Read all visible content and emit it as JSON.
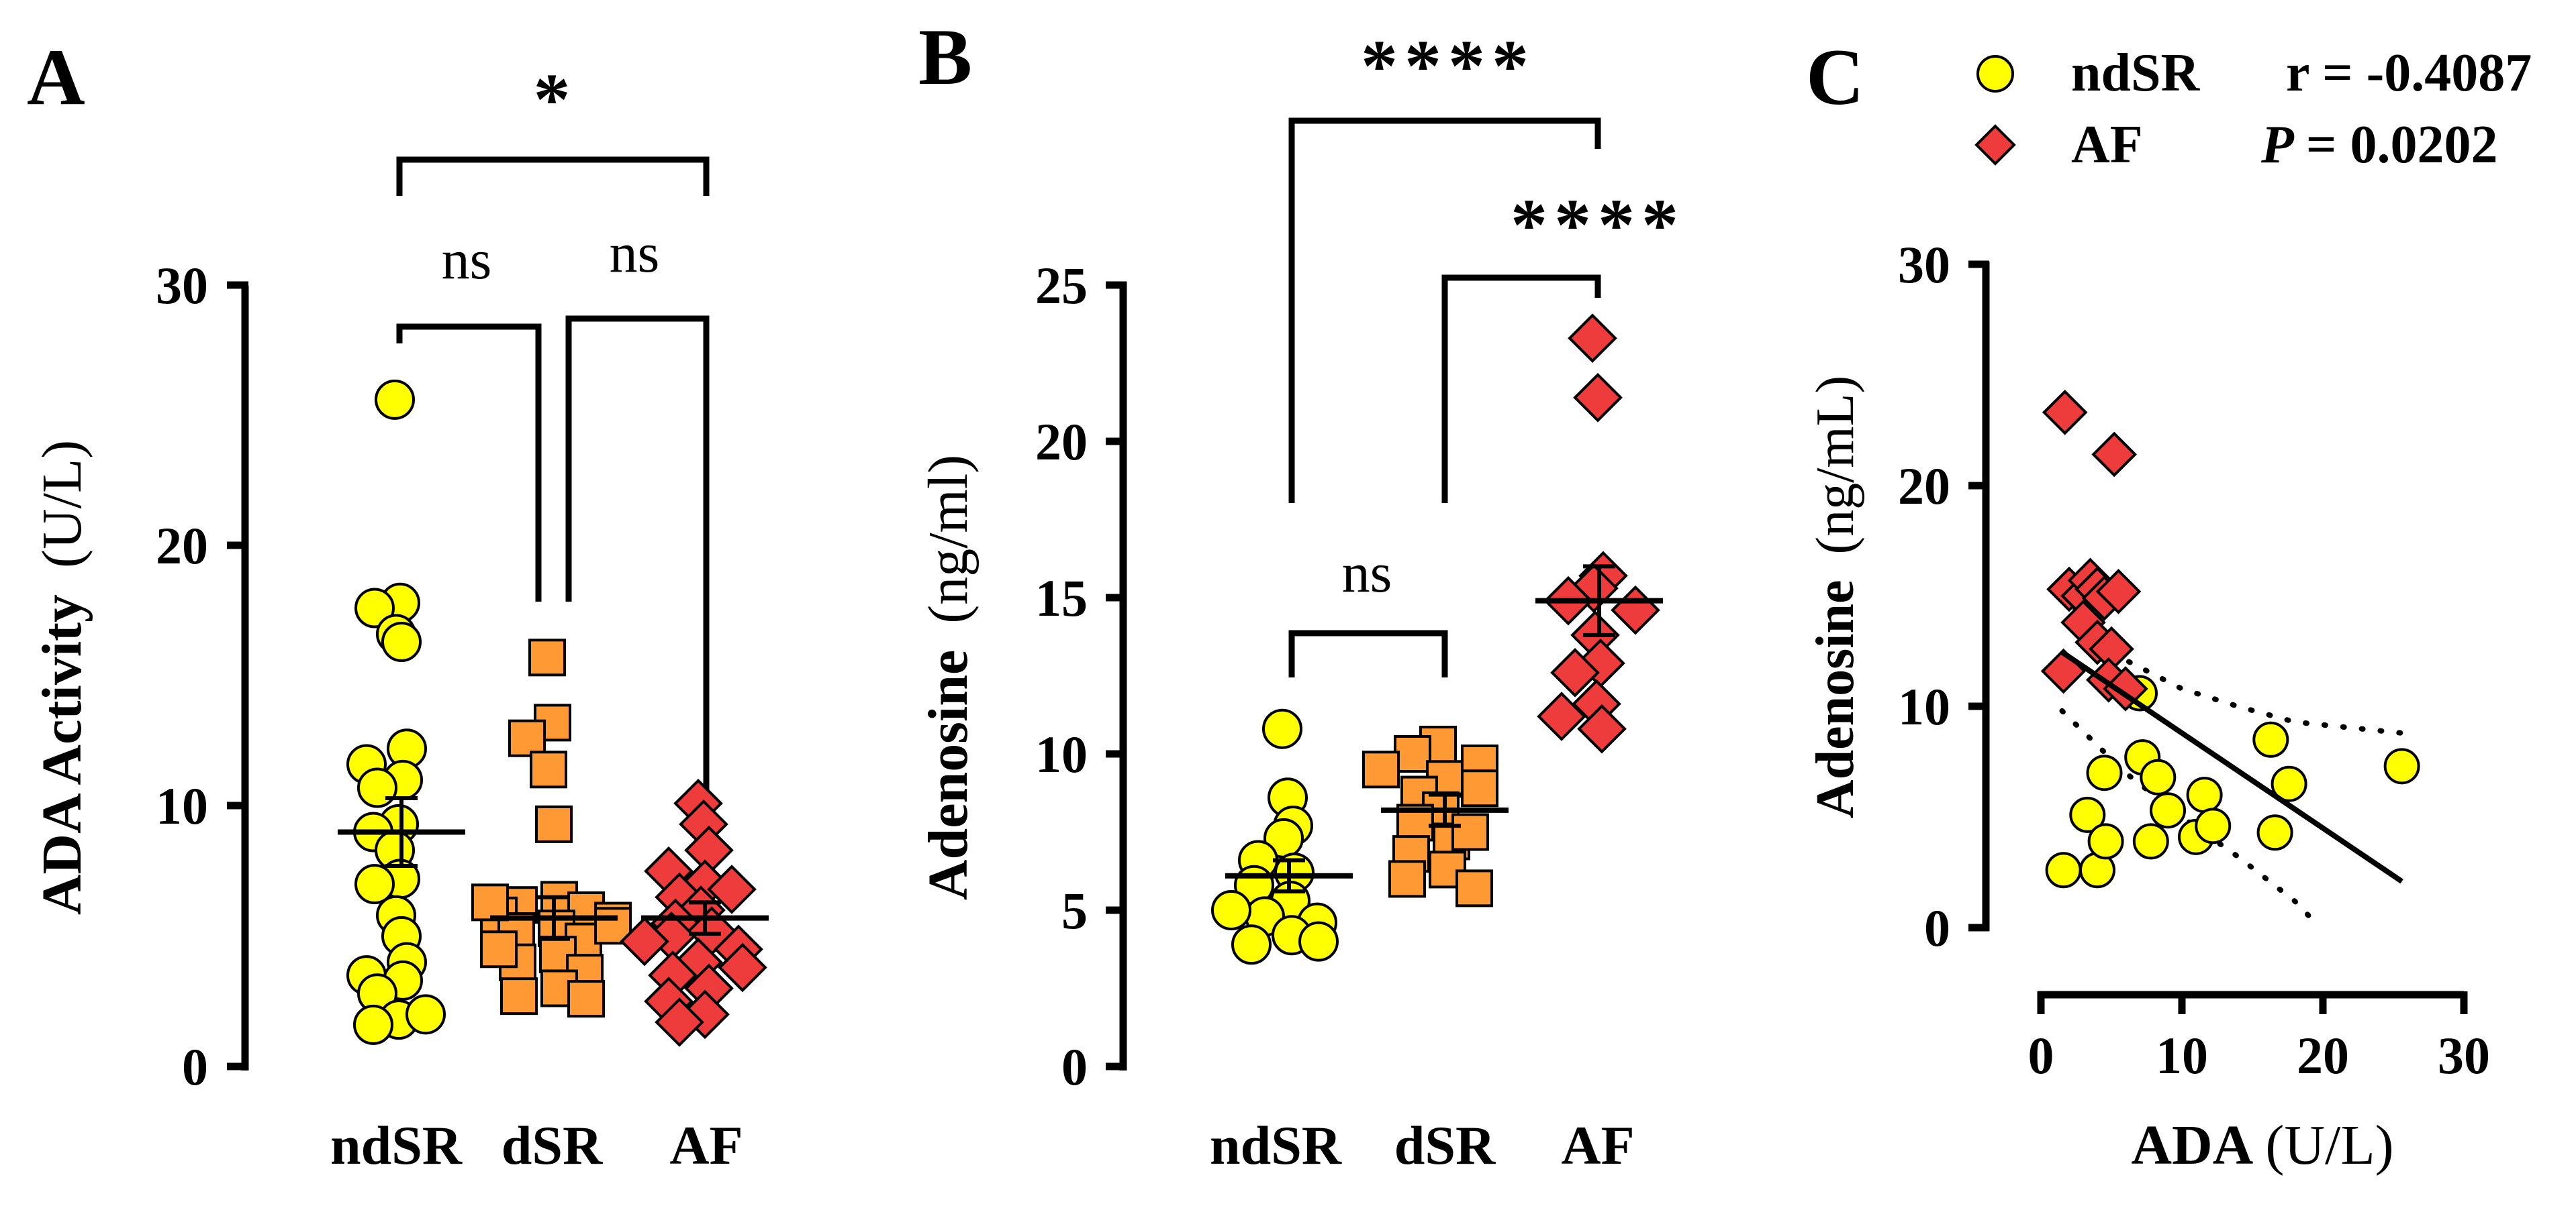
{
  "colors": {
    "ndSR": "#ffff00",
    "dSR": "#ff9933",
    "AF": "#ee3b3b",
    "axis": "#000000"
  },
  "chart_data": [
    {
      "panel": "A",
      "type": "scatter",
      "ylabel_bold": "ADA Activity",
      "ylabel_units": "(U/L)",
      "ylim": [
        0,
        30
      ],
      "yticks": [
        "0",
        "10",
        "20",
        "30"
      ],
      "categories": [
        "ndSR",
        "dSR",
        "AF"
      ],
      "series": [
        {
          "name": "ndSR",
          "marker": "circle",
          "mean": 9.0,
          "sem": 1.3,
          "values": [
            25.6,
            17.8,
            17.6,
            16.6,
            16.3,
            12.2,
            11.6,
            11.0,
            10.7,
            9.3,
            9.0,
            8.3,
            7.2,
            7.0,
            5.8,
            5.0,
            4.0,
            3.5,
            3.3,
            2.8,
            1.8,
            1.6,
            2.0
          ]
        },
        {
          "name": "dSR",
          "marker": "square",
          "mean": 5.7,
          "sem": 0.8,
          "values": [
            15.7,
            13.2,
            12.6,
            11.4,
            9.3,
            6.4,
            6.2,
            6.0,
            5.8,
            5.6,
            5.3,
            5.2,
            4.8,
            4.3,
            4.0,
            3.6,
            3.0,
            2.7,
            2.6,
            4.5,
            5.4,
            6.3
          ]
        },
        {
          "name": "AF",
          "marker": "diamond",
          "mean": 5.7,
          "sem": 0.6,
          "values": [
            10.1,
            9.3,
            8.3,
            7.5,
            7.0,
            6.5,
            6.0,
            5.5,
            5.2,
            5.0,
            4.5,
            4.0,
            3.5,
            3.0,
            2.5,
            2.0,
            1.7,
            6.8,
            4.8,
            3.8
          ]
        }
      ],
      "comparisons": [
        {
          "groups": [
            "ndSR",
            "AF"
          ],
          "label": "*"
        },
        {
          "groups": [
            "ndSR",
            "dSR"
          ],
          "label": "ns"
        },
        {
          "groups": [
            "dSR",
            "AF"
          ],
          "label": "ns"
        }
      ]
    },
    {
      "panel": "B",
      "type": "scatter",
      "ylabel_bold": "Adenosine",
      "ylabel_units": "(ng/ml)",
      "ylim": [
        0,
        25
      ],
      "yticks": [
        "0",
        "5",
        "10",
        "15",
        "20",
        "25"
      ],
      "categories": [
        "ndSR",
        "dSR",
        "AF"
      ],
      "series": [
        {
          "name": "ndSR",
          "marker": "circle",
          "mean": 6.1,
          "sem": 0.5,
          "values": [
            10.8,
            8.6,
            7.7,
            7.3,
            6.6,
            6.2,
            5.8,
            5.3,
            4.8,
            4.6,
            4.2,
            3.9,
            4.0,
            5.0
          ]
        },
        {
          "name": "dSR",
          "marker": "square",
          "mean": 8.2,
          "sem": 0.5,
          "values": [
            10.3,
            10.0,
            9.7,
            9.5,
            9.2,
            8.7,
            8.2,
            7.8,
            7.2,
            6.8,
            6.3,
            6.0,
            5.7,
            8.9,
            7.5
          ]
        },
        {
          "name": "AF",
          "marker": "diamond",
          "mean": 14.9,
          "sem": 1.1,
          "values": [
            23.3,
            21.4,
            15.7,
            15.3,
            14.9,
            14.6,
            13.8,
            12.9,
            12.6,
            11.6,
            10.8,
            11.2
          ]
        }
      ],
      "comparisons": [
        {
          "groups": [
            "ndSR",
            "AF"
          ],
          "label": "****"
        },
        {
          "groups": [
            "dSR",
            "AF"
          ],
          "label": "****"
        },
        {
          "groups": [
            "ndSR",
            "dSR"
          ],
          "label": "ns"
        }
      ]
    },
    {
      "panel": "C",
      "type": "scatter",
      "xlabel_bold": "ADA",
      "xlabel_units": "(U/L)",
      "ylabel_bold": "Adenosine",
      "ylabel_units": "(ng/mL)",
      "xlim": [
        0,
        30
      ],
      "ylim": [
        0,
        30
      ],
      "xticks": [
        "0",
        "10",
        "20",
        "30"
      ],
      "yticks": [
        "0",
        "10",
        "20",
        "30"
      ],
      "stats": {
        "r_label": "r = -0.4087",
        "p_symbol": "P",
        "p_value": "= 0.0202"
      },
      "series": [
        {
          "name": "ndSR",
          "marker": "circle",
          "points": [
            [
              1.6,
              2.6
            ],
            [
              3.3,
              5.1
            ],
            [
              4.0,
              2.6
            ],
            [
              4.6,
              3.9
            ],
            [
              4.5,
              7.0
            ],
            [
              7.2,
              7.7
            ],
            [
              7.8,
              3.9
            ],
            [
              8.3,
              6.8
            ],
            [
              9.0,
              5.3
            ],
            [
              11.0,
              4.1
            ],
            [
              11.6,
              6.0
            ],
            [
              12.2,
              4.6
            ],
            [
              16.3,
              8.5
            ],
            [
              16.6,
              4.3
            ],
            [
              17.6,
              6.5
            ],
            [
              25.6,
              7.3
            ],
            [
              7.0,
              10.6
            ]
          ]
        },
        {
          "name": "AF",
          "marker": "diamond",
          "points": [
            [
              1.7,
              23.3
            ],
            [
              5.2,
              21.4
            ],
            [
              2.0,
              15.3
            ],
            [
              3.0,
              15.0
            ],
            [
              3.5,
              15.7
            ],
            [
              4.0,
              15.3
            ],
            [
              4.5,
              14.9
            ],
            [
              5.5,
              15.2
            ],
            [
              3.0,
              13.8
            ],
            [
              4.0,
              12.9
            ],
            [
              5.0,
              12.6
            ],
            [
              1.6,
              11.6
            ],
            [
              4.8,
              11.2
            ],
            [
              6.0,
              10.8
            ]
          ]
        }
      ],
      "regression": {
        "slope": -0.43,
        "intercept": 13.1,
        "x_range": [
          1.5,
          25.6
        ]
      },
      "ci_lower": [
        [
          1.5,
          9.8
        ],
        [
          6,
          7.0
        ],
        [
          10,
          5.0
        ],
        [
          14,
          3.2
        ],
        [
          18,
          1.2
        ],
        [
          19.8,
          0.0
        ]
      ],
      "ci_upper": [
        [
          1.5,
          15.0
        ],
        [
          6,
          12.1
        ],
        [
          10,
          10.8
        ],
        [
          14,
          10.0
        ],
        [
          18,
          9.3
        ],
        [
          25.6,
          8.8
        ]
      ]
    }
  ]
}
